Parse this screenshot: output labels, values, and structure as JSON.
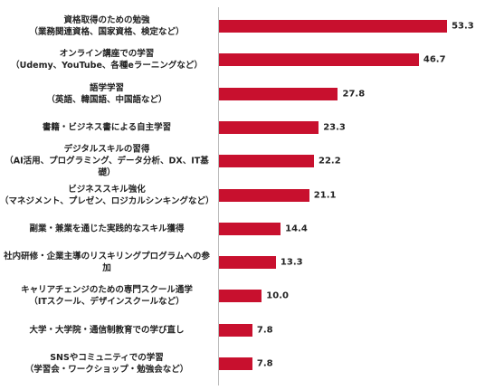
{
  "chart_data": {
    "type": "bar",
    "orientation": "horizontal",
    "color": "#c8102e",
    "categories": [
      "資格取得のための勉強\n（業務関連資格、国家資格、検定など）",
      "オンライン講座での学習\n（Udemy、YouTube、各種eラーニングなど）",
      "語学学習\n（英語、韓国語、中国語など）",
      "書籍・ビジネス書による自主学習",
      "デジタルスキルの習得\n（AI活用、プログラミング、データ分析、DX、IT基礎）",
      "ビジネススキル強化\n（マネジメント、プレゼン、ロジカルシンキングなど）",
      "副業・兼業を通じた実践的なスキル獲得",
      "社内研修・企業主導のリスキリングプログラムへの参加",
      "キャリアチェンジのための専門スクール通学\n（ITスクール、デザインスクールなど）",
      "大学・大学院・通信制教育での学び直し",
      "SNSやコミュニティでの学習\n（学習会・ワークショップ・勉強会など）"
    ],
    "values": [
      53.3,
      46.7,
      27.8,
      23.3,
      22.2,
      21.1,
      14.4,
      13.3,
      10.0,
      7.8,
      7.8
    ],
    "value_labels": [
      "53.3",
      "46.7",
      "27.8",
      "23.3",
      "22.2",
      "21.1",
      "14.4",
      "13.3",
      "10.0",
      "7.8",
      "7.8"
    ]
  }
}
